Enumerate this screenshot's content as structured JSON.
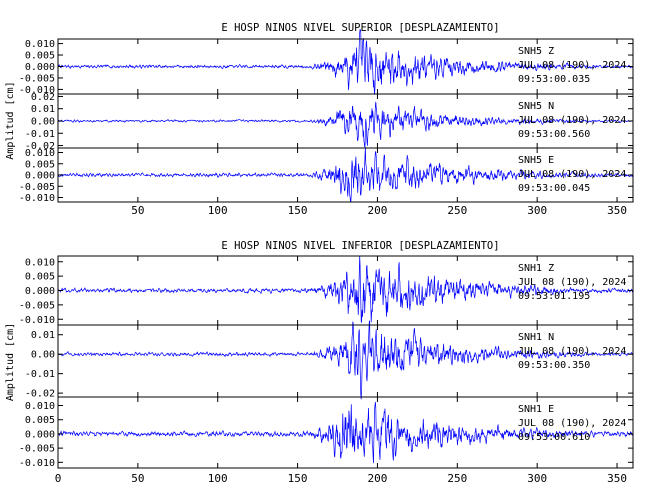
{
  "chart_data": [
    {
      "type": "line",
      "title": "E HOSP NINOS NIVEL SUPERIOR [DESPLAZAMIENTO]",
      "ylabel": "Amplitud [cm]",
      "xlabel": "",
      "xlim": [
        0,
        360
      ],
      "x_ticks": [
        50,
        100,
        150,
        200,
        250,
        300,
        350
      ],
      "series_color": "#0000ff",
      "panels": [
        {
          "station": "SNH5",
          "component": "Z",
          "date_line": "JUL 08 (190), 2024",
          "time_line": "09:53:00.035",
          "ylim": [
            -0.012,
            0.012
          ],
          "y_ticks": [
            0.01,
            0.005,
            0.0,
            -0.005,
            -0.01
          ],
          "y_tick_labels": [
            "0.010",
            "0.005",
            "0.000",
            "-0.005",
            "-0.010"
          ],
          "peak_amplitude": 0.012,
          "envelope": {
            "onset": 148,
            "peak": 190,
            "noise": 0.06,
            "decay": 55
          }
        },
        {
          "station": "SNH5",
          "component": "N",
          "date_line": "JUL 08 (190), 2024",
          "time_line": "09:53:00.560",
          "ylim": [
            -0.022,
            0.022
          ],
          "y_ticks": [
            0.02,
            0.01,
            0.0,
            -0.01,
            -0.02
          ],
          "y_tick_labels": [
            "0.02",
            "0.01",
            "0.00",
            "-0.01",
            "-0.02"
          ],
          "peak_amplitude": 0.018,
          "envelope": {
            "onset": 150,
            "peak": 188,
            "noise": 0.05,
            "decay": 50
          }
        },
        {
          "station": "SNH5",
          "component": "E",
          "date_line": "JUL 08 (190), 2024",
          "time_line": "09:53:00.045",
          "ylim": [
            -0.012,
            0.012
          ],
          "y_ticks": [
            0.01,
            0.005,
            0.0,
            -0.005,
            -0.01
          ],
          "y_tick_labels": [
            "0.010",
            "0.005",
            "0.000",
            "-0.005",
            "-0.010"
          ],
          "peak_amplitude": 0.0115,
          "envelope": {
            "onset": 148,
            "peak": 185,
            "noise": 0.07,
            "decay": 60
          }
        }
      ]
    },
    {
      "type": "line",
      "title": "E HOSP NINOS NIVEL INFERIOR [DESPLAZAMIENTO]",
      "ylabel": "Amplitud [cm]",
      "xlabel": "",
      "xlim": [
        0,
        360
      ],
      "x_ticks": [
        0,
        50,
        100,
        150,
        200,
        250,
        300,
        350
      ],
      "series_color": "#0000ff",
      "panels": [
        {
          "station": "SNH1",
          "component": "Z",
          "date_line": "JUL 08 (190), 2024",
          "time_line": "09:53:01.195",
          "ylim": [
            -0.012,
            0.012
          ],
          "y_ticks": [
            0.01,
            0.005,
            0.0,
            -0.005,
            -0.01
          ],
          "y_tick_labels": [
            "0.010",
            "0.005",
            "0.000",
            "-0.005",
            "-0.010"
          ],
          "peak_amplitude": 0.012,
          "envelope": {
            "onset": 148,
            "peak": 190,
            "noise": 0.06,
            "decay": 55
          }
        },
        {
          "station": "SNH1",
          "component": "N",
          "date_line": "JUL 08 (190), 2024",
          "time_line": "09:53:00.350",
          "ylim": [
            -0.022,
            0.015
          ],
          "y_ticks": [
            0.01,
            0.0,
            -0.01,
            -0.02
          ],
          "y_tick_labels": [
            "0.01",
            "0.00",
            "-0.01",
            "-0.02"
          ],
          "peak_amplitude": 0.018,
          "envelope": {
            "onset": 150,
            "peak": 188,
            "noise": 0.05,
            "decay": 50
          }
        },
        {
          "station": "SNH1",
          "component": "E",
          "date_line": "JUL 08 (190), 2024",
          "time_line": "09:53:00.610",
          "ylim": [
            -0.012,
            0.013
          ],
          "y_ticks": [
            0.01,
            0.005,
            0.0,
            -0.005,
            -0.01
          ],
          "y_tick_labels": [
            "0.010",
            "0.005",
            "0.000",
            "-0.005",
            "-0.010"
          ],
          "peak_amplitude": 0.012,
          "envelope": {
            "onset": 148,
            "peak": 182,
            "noise": 0.07,
            "decay": 60
          }
        }
      ]
    }
  ]
}
